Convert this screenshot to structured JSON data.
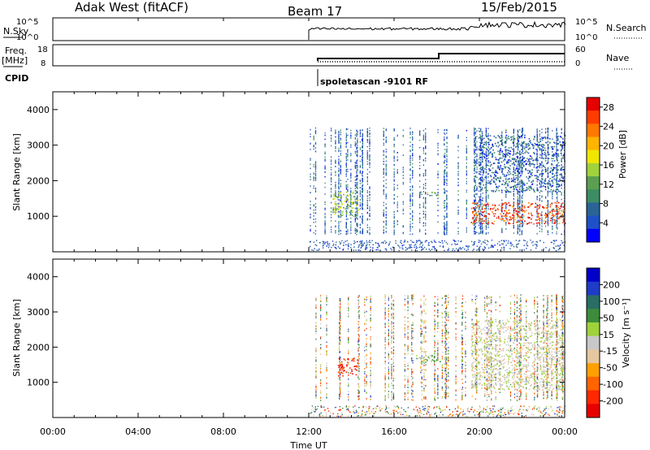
{
  "header": {
    "radar": "Adak West (fitACF)",
    "beam": "Beam 17",
    "date": "15/Feb/2015"
  },
  "aux_panels": {
    "nsky": {
      "label": "N.Sky",
      "ticks": [
        "10^5",
        "10^0"
      ]
    },
    "nsearch": {
      "label": "N.Search",
      "ticks": [
        "10^5",
        "10^0"
      ]
    },
    "freq": {
      "label": "Freq.",
      "unit": "[MHz]",
      "ticks": [
        "18",
        "8"
      ]
    },
    "nave": {
      "label": "Nave",
      "ticks": [
        "60",
        "0"
      ]
    },
    "cpid": {
      "label": "CPID",
      "program": "spoletascan -9101 RF"
    }
  },
  "x_axis": {
    "label": "Time UT",
    "ticks": [
      "00:00",
      "04:00",
      "08:00",
      "12:00",
      "16:00",
      "20:00",
      "00:00"
    ]
  },
  "colors": {
    "power": [
      "#0000ff",
      "#1e50c8",
      "#2a6496",
      "#3c8c64",
      "#5aa050",
      "#a0d23c",
      "#f0e600",
      "#ffb400",
      "#ff7800",
      "#ff3c00",
      "#e60000"
    ],
    "velocity": [
      "#0000c8",
      "#1e3cc8",
      "#286e64",
      "#3c8c3c",
      "#a0d23c",
      "#c8c8c8",
      "#e6c8a0",
      "#ffa000",
      "#ff6400",
      "#ff2800",
      "#e60000"
    ]
  },
  "chart_data": [
    {
      "type": "heatmap",
      "title": "Power",
      "ylabel": "Slant Range [km]",
      "xlabel": "",
      "x_range_hours": [
        0,
        24
      ],
      "ylim": [
        0,
        4500
      ],
      "yticks": [
        1000,
        2000,
        3000,
        4000
      ],
      "colorbar": {
        "label": "Power [dB]",
        "ticks": [
          4,
          8,
          12,
          16,
          20,
          24,
          28
        ],
        "range": [
          0,
          30
        ]
      },
      "features": [
        {
          "desc": "main echo band",
          "t_start": 19.6,
          "t_end": 24.0,
          "range_start": 800,
          "range_end": 1400,
          "value": 26
        },
        {
          "desc": "scatter patch",
          "t_start": 13.1,
          "t_end": 14.3,
          "range_start": 1000,
          "range_end": 1700,
          "value": 14
        },
        {
          "desc": "scatter patch",
          "t_start": 17.0,
          "t_end": 18.1,
          "range_start": 1600,
          "range_end": 1700,
          "value": 12
        },
        {
          "desc": "upper band",
          "t_start": 20.0,
          "t_end": 24.0,
          "range_start": 1700,
          "range_end": 3300,
          "value": 6
        }
      ]
    },
    {
      "type": "heatmap",
      "title": "Velocity",
      "ylabel": "Slant Range [km]",
      "xlabel": "Time UT",
      "x_range_hours": [
        0,
        24
      ],
      "ylim": [
        0,
        4500
      ],
      "yticks": [
        1000,
        2000,
        3000,
        4000
      ],
      "colorbar": {
        "label": "Velocity [m s⁻¹]",
        "ticks": [
          "200",
          "100",
          "50",
          "15",
          "-15",
          "-50",
          "-100",
          "-200"
        ],
        "range": [
          -250,
          250
        ]
      },
      "features": [
        {
          "desc": "ground scatter region",
          "t_start": 19.6,
          "t_end": 24.0,
          "range_start": 800,
          "range_end": 2800,
          "value": 0
        },
        {
          "desc": "scatter patch",
          "t_start": 13.3,
          "t_end": 14.3,
          "range_start": 1200,
          "range_end": 1700,
          "value": -200
        },
        {
          "desc": "scatter patch",
          "t_start": 17.0,
          "t_end": 18.2,
          "range_start": 1600,
          "range_end": 1800,
          "value": 50
        }
      ]
    }
  ]
}
